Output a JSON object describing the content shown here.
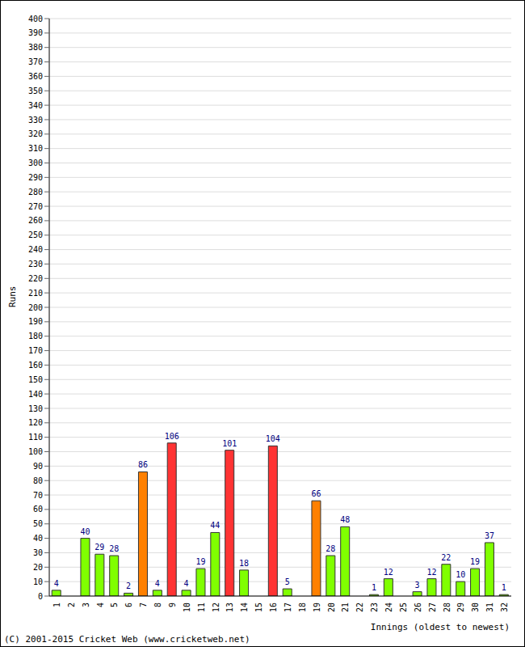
{
  "chart_data": {
    "type": "bar",
    "x_label": "Innings (oldest to newest)",
    "y_label": "Runs",
    "annotation": "(C) 2001-2015 Cricket Web (www.cricketweb.net)",
    "categories": [
      "1",
      "2",
      "3",
      "4",
      "5",
      "6",
      "7",
      "8",
      "9",
      "10",
      "11",
      "12",
      "13",
      "14",
      "15",
      "16",
      "17",
      "18",
      "19",
      "20",
      "21",
      "22",
      "23",
      "24",
      "25",
      "26",
      "27",
      "28",
      "29",
      "30",
      "31",
      "32"
    ],
    "values": [
      4,
      0,
      40,
      29,
      28,
      2,
      86,
      4,
      106,
      4,
      19,
      44,
      101,
      18,
      0,
      104,
      5,
      0,
      66,
      28,
      48,
      0,
      1,
      12,
      0,
      3,
      12,
      22,
      10,
      19,
      37,
      1
    ],
    "colors": [
      "#80ff00",
      "#80ff00",
      "#80ff00",
      "#80ff00",
      "#80ff00",
      "#80ff00",
      "#ff8000",
      "#80ff00",
      "#ff3333",
      "#80ff00",
      "#80ff00",
      "#80ff00",
      "#ff3333",
      "#80ff00",
      "#80ff00",
      "#ff3333",
      "#80ff00",
      "#80ff00",
      "#ff8000",
      "#80ff00",
      "#80ff00",
      "#80ff00",
      "#80ff00",
      "#80ff00",
      "#80ff00",
      "#80ff00",
      "#80ff00",
      "#80ff00",
      "#80ff00",
      "#80ff00",
      "#80ff00",
      "#80ff00"
    ],
    "ylim": [
      0,
      400
    ],
    "yticks": [
      0,
      10,
      20,
      30,
      40,
      50,
      60,
      70,
      80,
      90,
      100,
      110,
      120,
      130,
      140,
      150,
      160,
      170,
      180,
      190,
      200,
      210,
      220,
      230,
      240,
      250,
      260,
      270,
      280,
      290,
      300,
      310,
      320,
      330,
      340,
      350,
      360,
      370,
      380,
      390,
      400
    ],
    "grid": true,
    "data_labels": true
  }
}
